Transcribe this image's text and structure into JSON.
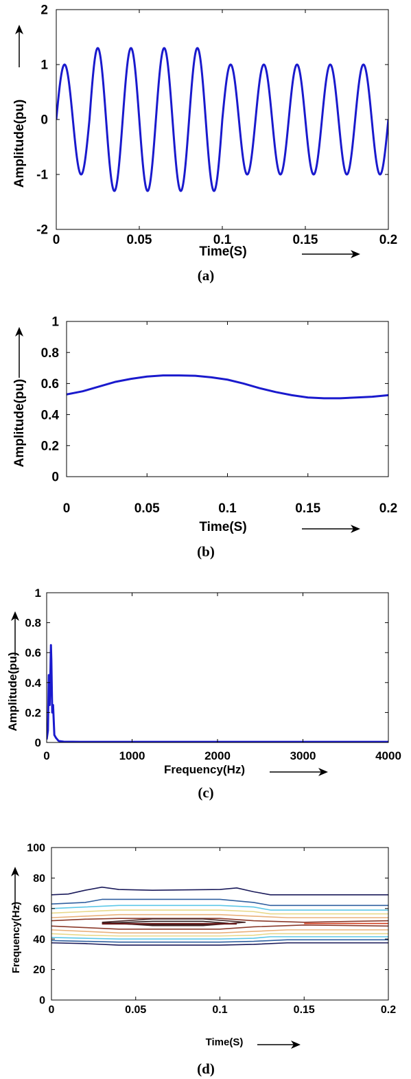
{
  "chart_data": [
    {
      "type": "line",
      "caption": "(a)",
      "xlabel": "Time(S)",
      "ylabel": "Amplitude(pu)",
      "xlim": [
        0,
        0.2
      ],
      "ylim": [
        -2,
        2
      ],
      "xticks": [
        0,
        0.05,
        0.1,
        0.15,
        0.2
      ],
      "xtick_labels": [
        "0",
        "0.05",
        "0.1",
        "0.15",
        "0.2"
      ],
      "yticks": [
        -2,
        -1,
        0,
        1,
        2
      ],
      "ytick_labels": [
        "-2",
        "-1",
        "0",
        "1",
        "2"
      ],
      "series": [
        {
          "color": "#1a1acd",
          "signal": {
            "frequency_hz": 50,
            "base_amplitude": 1.0,
            "swell_amplitude": 1.3,
            "swell_start": 0.02,
            "swell_end": 0.1
          }
        }
      ]
    },
    {
      "type": "line",
      "caption": "(b)",
      "xlabel": "Time(S)",
      "ylabel": "Amplitude(pu)",
      "xlim": [
        0,
        0.2
      ],
      "ylim": [
        0,
        1
      ],
      "xticks": [
        0,
        0.05,
        0.1,
        0.15,
        0.2
      ],
      "xtick_labels": [
        "0",
        "0.05",
        "0.1",
        "0.15",
        "0.2"
      ],
      "yticks": [
        0,
        0.2,
        0.4,
        0.6,
        0.8,
        1
      ],
      "ytick_labels": [
        "0",
        "0.2",
        "0.4",
        "0.6",
        "0.8",
        "1"
      ],
      "series": [
        {
          "color": "#1a1acd",
          "x": [
            0,
            0.01,
            0.02,
            0.03,
            0.04,
            0.05,
            0.06,
            0.07,
            0.08,
            0.09,
            0.1,
            0.11,
            0.12,
            0.13,
            0.14,
            0.15,
            0.16,
            0.17,
            0.18,
            0.19,
            0.2
          ],
          "y": [
            0.53,
            0.55,
            0.58,
            0.61,
            0.63,
            0.645,
            0.652,
            0.652,
            0.65,
            0.64,
            0.625,
            0.6,
            0.57,
            0.545,
            0.525,
            0.51,
            0.505,
            0.505,
            0.51,
            0.515,
            0.525
          ]
        }
      ]
    },
    {
      "type": "line",
      "caption": "(c)",
      "xlabel": "Frequency(Hz)",
      "ylabel": "Amplitude(pu)",
      "xlim": [
        0,
        4000
      ],
      "ylim": [
        0,
        1
      ],
      "xticks": [
        0,
        1000,
        2000,
        3000,
        4000
      ],
      "xtick_labels": [
        "0",
        "1000",
        "2000",
        "3000",
        "4000"
      ],
      "yticks": [
        0,
        0.2,
        0.4,
        0.6,
        0.8,
        1
      ],
      "ytick_labels": [
        "0",
        "0.2",
        "0.4",
        "0.6",
        "0.8",
        "1"
      ],
      "series": [
        {
          "color": "#1a1acd",
          "x": [
            0,
            15,
            25,
            35,
            45,
            50,
            55,
            65,
            75,
            90,
            110,
            140,
            200,
            400,
            1000,
            2000,
            3000,
            4000
          ],
          "y": [
            0.02,
            0.08,
            0.45,
            0.25,
            0.5,
            0.65,
            0.55,
            0.2,
            0.25,
            0.05,
            0.03,
            0.01,
            0.005,
            0.004,
            0.004,
            0.004,
            0.004,
            0.004
          ]
        }
      ]
    },
    {
      "type": "contour",
      "caption": "(d)",
      "xlabel": "Time(S)",
      "ylabel": "Frequency(Hz)",
      "xlim": [
        0,
        0.2
      ],
      "ylim": [
        0,
        100
      ],
      "xticks": [
        0,
        0.05,
        0.1,
        0.15,
        0.2
      ],
      "xtick_labels": [
        "0",
        "0.05",
        "0.1",
        "0.15",
        "0.2"
      ],
      "yticks": [
        0,
        20,
        40,
        60,
        80,
        100
      ],
      "ytick_labels": [
        "0",
        "20",
        "40",
        "60",
        "80",
        "100"
      ],
      "contours": [
        {
          "color": "#1a1a5a",
          "x": [
            0,
            0.01,
            0.02,
            0.03,
            0.04,
            0.06,
            0.1,
            0.11,
            0.12,
            0.13,
            0.15,
            0.2
          ],
          "y": [
            69,
            69.5,
            72,
            74,
            72.5,
            72,
            72.5,
            73.5,
            71,
            69,
            69,
            69
          ]
        },
        {
          "color": "#2f5f9f",
          "x": [
            0,
            0.02,
            0.03,
            0.05,
            0.1,
            0.12,
            0.13,
            0.15,
            0.2
          ],
          "y": [
            63,
            64,
            66,
            66,
            66,
            64,
            62,
            62,
            62
          ]
        },
        {
          "color": "#5cc8e8",
          "x": [
            0,
            0.02,
            0.04,
            0.1,
            0.12,
            0.13,
            0.2
          ],
          "y": [
            60,
            61,
            62,
            62,
            61,
            59,
            59
          ]
        },
        {
          "color": "#e8d88a",
          "x": [
            0,
            0.02,
            0.04,
            0.1,
            0.12,
            0.13,
            0.2
          ],
          "y": [
            57,
            58,
            59,
            59,
            58,
            56.5,
            56.5
          ]
        },
        {
          "color": "#e9b07a",
          "x": [
            0,
            0.02,
            0.04,
            0.1,
            0.12,
            0.14,
            0.2
          ],
          "y": [
            54,
            55,
            56,
            56,
            55,
            54,
            54
          ]
        },
        {
          "color": "#8b3a2a",
          "x": [
            0,
            0.02,
            0.04,
            0.1,
            0.12,
            0.15,
            0.2
          ],
          "y": [
            52,
            53,
            53.5,
            53.5,
            52,
            51,
            52
          ]
        },
        {
          "color": "#d03a1a",
          "x": [
            0.15,
            0.2
          ],
          "y": [
            50.2,
            50.2
          ]
        },
        {
          "color": "#8b3a2a",
          "x": [
            0,
            0.02,
            0.04,
            0.1,
            0.12,
            0.15,
            0.2
          ],
          "y": [
            48.5,
            47.5,
            46.5,
            46.5,
            48,
            49.2,
            48.5
          ]
        },
        {
          "color": "#e9b07a",
          "x": [
            0,
            0.02,
            0.04,
            0.1,
            0.12,
            0.14,
            0.2
          ],
          "y": [
            46,
            45,
            44,
            44,
            45,
            46,
            46
          ]
        },
        {
          "color": "#e8d88a",
          "x": [
            0,
            0.02,
            0.04,
            0.1,
            0.12,
            0.13,
            0.2
          ],
          "y": [
            43.5,
            42.5,
            42,
            42,
            42.5,
            43.5,
            43.5
          ]
        },
        {
          "color": "#5cc8e8",
          "x": [
            0,
            0.02,
            0.04,
            0.1,
            0.12,
            0.13,
            0.2
          ],
          "y": [
            41,
            40.5,
            40,
            40,
            40.5,
            41.5,
            41.5
          ]
        },
        {
          "color": "#2f5f9f",
          "x": [
            0,
            0.02,
            0.04,
            0.1,
            0.12,
            0.14,
            0.2
          ],
          "y": [
            39,
            38.5,
            38,
            38,
            38.5,
            39.5,
            39.5
          ]
        },
        {
          "color": "#1a1a5a",
          "x": [
            0,
            0.02,
            0.04,
            0.1,
            0.12,
            0.14,
            0.2
          ],
          "y": [
            37.5,
            37,
            36,
            36,
            36.5,
            37.5,
            37.5
          ]
        }
      ],
      "closed_contours": [
        {
          "color": "#4a2a2a",
          "x": [
            0.03,
            0.06,
            0.09,
            0.115,
            0.09,
            0.06,
            0.03
          ],
          "y": [
            51,
            53.2,
            53.2,
            51,
            48.8,
            48.8,
            51
          ]
        },
        {
          "color": "#2a1a1a",
          "x": [
            0.03,
            0.06,
            0.09,
            0.105,
            0.09,
            0.06,
            0.03
          ],
          "y": [
            50.3,
            51.6,
            51.6,
            50.3,
            49.4,
            49.4,
            50.3
          ]
        },
        {
          "color": "#6a1a1a",
          "x": [
            0.03,
            0.11
          ],
          "y": [
            50.0,
            50.0
          ]
        }
      ]
    }
  ]
}
